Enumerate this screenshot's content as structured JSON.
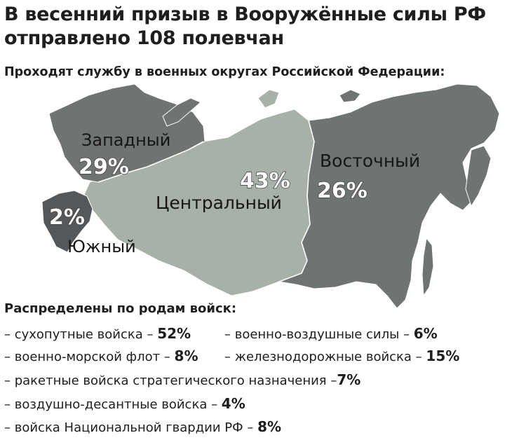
{
  "title_line1": "В весенний призыв в Вооружённые силы РФ",
  "title_line2": "отправлено 108 полевчан",
  "subtitle": "Проходят службу в военных округах  Российской Федерации:",
  "regions": [
    {
      "id": "west",
      "name": "Западный",
      "pct": "29%",
      "color": "#6f7470"
    },
    {
      "id": "south",
      "name": "Южный",
      "pct": "2%",
      "color": "#54585a"
    },
    {
      "id": "central",
      "name": "Центральный",
      "pct": "43%",
      "color": "#a7b1a7"
    },
    {
      "id": "east",
      "name": "Восточный",
      "pct": "26%",
      "color": "#6e7471"
    }
  ],
  "branches_heading": "Распределены по родам войск:",
  "branches": [
    {
      "label": "– сухопутные войска – ",
      "value": "52%"
    },
    {
      "label": "– военно-воздушные силы – ",
      "value": "6%"
    },
    {
      "label": "– военно-морской флот – ",
      "value": "8%"
    },
    {
      "label": "– железнодорожные войска – ",
      "value": "15%"
    },
    {
      "label": "– ракетные войска стратегического назначения –",
      "value": "7%"
    },
    {
      "label": "– воздушно-десантные войска – ",
      "value": "4%"
    },
    {
      "label": "– войска Национальной гвардии РФ – ",
      "value": "8%"
    }
  ]
}
